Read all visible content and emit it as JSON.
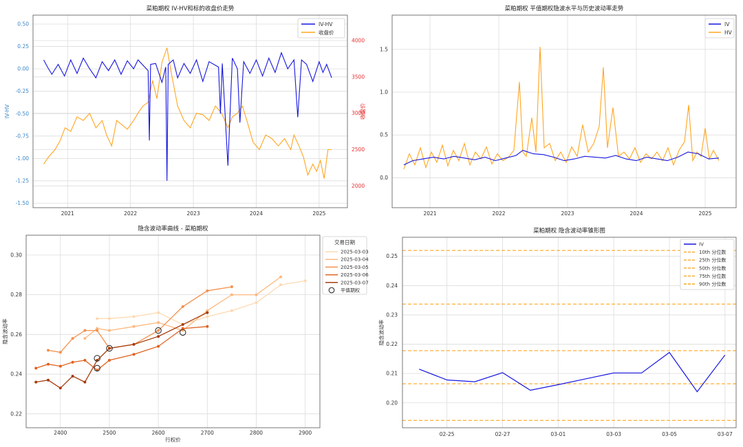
{
  "chart_data": [
    {
      "type": "line",
      "title": "菜粕期权 IV-HV和标的收盘价走势",
      "ylabel": "IV-HV",
      "y2label": "收盘价",
      "ylim": [
        -1.55,
        0.6
      ],
      "y2lim": [
        1700,
        4350
      ],
      "yticks": [
        "0.50",
        "0.25",
        "0.00",
        "-0.25",
        "-0.50",
        "-0.75",
        "-1.00",
        "-1.25",
        "-1.50"
      ],
      "y2ticks": [
        "4000",
        "3500",
        "3000",
        "2500",
        "2000"
      ],
      "xticks": [
        "2021",
        "2022",
        "2023",
        "2024",
        "2025"
      ],
      "xlim": [
        2020.45,
        2025.45
      ],
      "legend": [
        "IV-HV",
        "收盘价"
      ],
      "legend_position": "top-right",
      "colors": {
        "iv_hv": "#1515e0",
        "close": "#ffa51f",
        "y_left_ticks": "#3a86c8",
        "y_right_ticks": "#e83030"
      },
      "grid": true,
      "series": [
        {
          "name": "IV-HV",
          "axis": "left",
          "x": [
            2020.62,
            2020.68,
            2020.75,
            2020.85,
            2020.95,
            2021.05,
            2021.15,
            2021.25,
            2021.35,
            2021.45,
            2021.55,
            2021.65,
            2021.75,
            2021.85,
            2021.95,
            2022.05,
            2022.12,
            2022.28,
            2022.3,
            2022.32,
            2022.4,
            2022.5,
            2022.56,
            2022.58,
            2022.6,
            2022.68,
            2022.75,
            2022.85,
            2022.95,
            2023.05,
            2023.15,
            2023.25,
            2023.4,
            2023.43,
            2023.46,
            2023.55,
            2023.62,
            2023.7,
            2023.74,
            2023.8,
            2023.9,
            2024.0,
            2024.1,
            2024.2,
            2024.3,
            2024.4,
            2024.5,
            2024.6,
            2024.66,
            2024.72,
            2024.8,
            2024.9,
            2025.0,
            2025.06,
            2025.12,
            2025.2
          ],
          "values": [
            0.1,
            0.02,
            -0.06,
            0.05,
            -0.08,
            0.1,
            -0.05,
            0.12,
            0.0,
            -0.1,
            0.08,
            -0.02,
            0.1,
            -0.06,
            0.09,
            0.0,
            0.1,
            -0.02,
            -0.8,
            0.05,
            0.06,
            -0.15,
            0.02,
            -1.25,
            0.05,
            0.1,
            -0.1,
            0.06,
            -0.05,
            0.1,
            -0.14,
            0.08,
            0.02,
            -0.5,
            0.06,
            -1.08,
            0.12,
            0.0,
            -0.6,
            0.08,
            -0.05,
            0.1,
            -0.08,
            0.12,
            -0.04,
            0.18,
            0.0,
            0.1,
            -0.54,
            0.1,
            0.05,
            -0.14,
            0.08,
            -0.04,
            0.05,
            -0.1
          ]
        },
        {
          "name": "收盘价",
          "axis": "right",
          "x": [
            2020.62,
            2020.7,
            2020.8,
            2020.88,
            2020.96,
            2021.05,
            2021.15,
            2021.25,
            2021.35,
            2021.45,
            2021.55,
            2021.62,
            2021.7,
            2021.78,
            2021.85,
            2021.95,
            2022.05,
            2022.12,
            2022.2,
            2022.28,
            2022.35,
            2022.42,
            2022.5,
            2022.58,
            2022.65,
            2022.75,
            2022.85,
            2022.95,
            2023.05,
            2023.15,
            2023.25,
            2023.35,
            2023.45,
            2023.55,
            2023.62,
            2023.7,
            2023.78,
            2023.85,
            2023.95,
            2024.05,
            2024.15,
            2024.25,
            2024.35,
            2024.45,
            2024.55,
            2024.6,
            2024.68,
            2024.75,
            2024.82,
            2024.9,
            2024.96,
            2025.02,
            2025.08,
            2025.14,
            2025.2
          ],
          "values": [
            2300,
            2400,
            2500,
            2620,
            2800,
            2750,
            2950,
            2900,
            3000,
            2800,
            2900,
            2700,
            2550,
            2900,
            2850,
            2780,
            2900,
            3000,
            3100,
            3150,
            3450,
            3200,
            3700,
            3900,
            3550,
            3100,
            2900,
            2800,
            3000,
            2980,
            2900,
            3100,
            3000,
            2800,
            2950,
            3000,
            3100,
            2900,
            2600,
            2500,
            2700,
            2650,
            2550,
            2650,
            2500,
            2700,
            2550,
            2400,
            2150,
            2300,
            2200,
            2350,
            2100,
            2500,
            2500
          ]
        }
      ]
    },
    {
      "type": "line",
      "title": "菜粕期权 平值期权隐波水平与历史波动率走势",
      "ylim": [
        -0.35,
        1.9
      ],
      "yticks": [
        "1.5",
        "1.0",
        "0.5",
        "0.0"
      ],
      "xticks": [
        "2021",
        "2022",
        "2023",
        "2024",
        "2025"
      ],
      "xlim": [
        2020.45,
        2025.45
      ],
      "legend": [
        "IV",
        "HV"
      ],
      "legend_position": "top-right",
      "colors": {
        "iv": "#1515e0",
        "hv": "#ffa51f"
      },
      "grid": true,
      "series": [
        {
          "name": "IV",
          "x": [
            2020.62,
            2020.75,
            2020.9,
            2021.05,
            2021.2,
            2021.35,
            2021.5,
            2021.65,
            2021.8,
            2021.95,
            2022.1,
            2022.25,
            2022.35,
            2022.5,
            2022.65,
            2022.8,
            2022.95,
            2023.1,
            2023.25,
            2023.4,
            2023.55,
            2023.7,
            2023.85,
            2024.0,
            2024.15,
            2024.3,
            2024.45,
            2024.6,
            2024.75,
            2024.9,
            2025.05,
            2025.2
          ],
          "values": [
            0.15,
            0.2,
            0.22,
            0.24,
            0.22,
            0.25,
            0.23,
            0.21,
            0.24,
            0.2,
            0.23,
            0.26,
            0.32,
            0.28,
            0.27,
            0.24,
            0.2,
            0.22,
            0.25,
            0.24,
            0.23,
            0.26,
            0.22,
            0.2,
            0.24,
            0.22,
            0.2,
            0.24,
            0.3,
            0.28,
            0.22,
            0.23
          ]
        },
        {
          "name": "HV",
          "x": [
            2020.62,
            2020.7,
            2020.78,
            2020.86,
            2020.94,
            2021.02,
            2021.1,
            2021.18,
            2021.26,
            2021.34,
            2021.42,
            2021.5,
            2021.58,
            2021.66,
            2021.74,
            2021.82,
            2021.9,
            2021.98,
            2022.06,
            2022.14,
            2022.22,
            2022.3,
            2022.35,
            2022.4,
            2022.48,
            2022.54,
            2022.6,
            2022.66,
            2022.74,
            2022.82,
            2022.9,
            2022.98,
            2023.06,
            2023.14,
            2023.22,
            2023.3,
            2023.38,
            2023.46,
            2023.52,
            2023.58,
            2023.66,
            2023.74,
            2023.82,
            2023.9,
            2023.98,
            2024.06,
            2024.14,
            2024.22,
            2024.3,
            2024.38,
            2024.46,
            2024.54,
            2024.62,
            2024.7,
            2024.76,
            2024.82,
            2024.88,
            2024.94,
            2025.0,
            2025.06,
            2025.12,
            2025.2
          ],
          "values": [
            0.1,
            0.28,
            0.15,
            0.35,
            0.12,
            0.3,
            0.18,
            0.38,
            0.14,
            0.32,
            0.2,
            0.4,
            0.15,
            0.3,
            0.22,
            0.36,
            0.16,
            0.28,
            0.2,
            0.24,
            0.32,
            1.12,
            0.3,
            0.25,
            0.7,
            0.3,
            1.53,
            0.35,
            0.4,
            0.2,
            0.3,
            0.18,
            0.36,
            0.25,
            0.62,
            0.3,
            0.4,
            0.6,
            1.29,
            0.35,
            0.82,
            0.25,
            0.3,
            0.22,
            0.35,
            0.18,
            0.28,
            0.22,
            0.3,
            0.2,
            0.35,
            0.15,
            0.32,
            0.42,
            0.85,
            0.2,
            0.3,
            0.25,
            0.58,
            0.22,
            0.32,
            0.2
          ]
        }
      ]
    },
    {
      "type": "line",
      "title": "隐含波动率曲线 - 菜粕期权",
      "xlabel": "行权价",
      "ylabel": "隐含波动率",
      "xlim": [
        2330,
        2930
      ],
      "ylim": [
        0.213,
        0.31
      ],
      "xticks": [
        "2400",
        "2500",
        "2600",
        "2700",
        "2800",
        "2900"
      ],
      "yticks": [
        "0.30",
        "0.28",
        "0.26",
        "0.24",
        "0.22"
      ],
      "legend_title": "交易日期",
      "legend": [
        "2025-03-03",
        "2025-03-04",
        "2025-03-05",
        "2025-03-06",
        "2025-03-07",
        "平值期权"
      ],
      "legend_position": "outside-right",
      "grid": true,
      "series": [
        {
          "name": "2025-03-03",
          "color": "#fdd9b2",
          "x": [
            2475,
            2500,
            2550,
            2600,
            2650,
            2700,
            2750,
            2800,
            2850,
            2900
          ],
          "values": [
            0.268,
            0.268,
            0.269,
            0.271,
            0.265,
            0.269,
            0.272,
            0.276,
            0.285,
            0.287
          ]
        },
        {
          "name": "2025-03-04",
          "color": "#fdb87e",
          "x": [
            2450,
            2475,
            2500,
            2550,
            2600,
            2650,
            2700,
            2750,
            2800,
            2850
          ],
          "values": [
            0.258,
            0.263,
            0.262,
            0.264,
            0.266,
            0.262,
            0.272,
            0.28,
            0.28,
            0.289
          ]
        },
        {
          "name": "2025-03-05",
          "color": "#f4904c",
          "x": [
            2375,
            2400,
            2425,
            2450,
            2475,
            2500,
            2550,
            2600,
            2650,
            2700,
            2750
          ],
          "values": [
            0.252,
            0.251,
            0.258,
            0.262,
            0.262,
            0.253,
            0.255,
            0.262,
            0.274,
            0.282,
            0.284
          ]
        },
        {
          "name": "2025-03-06",
          "color": "#e0621f",
          "x": [
            2350,
            2375,
            2400,
            2425,
            2450,
            2475,
            2500,
            2550,
            2600,
            2650,
            2700
          ],
          "values": [
            0.243,
            0.245,
            0.244,
            0.246,
            0.247,
            0.242,
            0.247,
            0.25,
            0.254,
            0.263,
            0.264
          ]
        },
        {
          "name": "2025-03-07",
          "color": "#a63c0c",
          "x": [
            2350,
            2375,
            2400,
            2425,
            2450,
            2475,
            2500,
            2550,
            2600,
            2650,
            2700
          ],
          "values": [
            0.236,
            0.237,
            0.233,
            0.239,
            0.236,
            0.247,
            0.253,
            0.255,
            0.259,
            0.265,
            0.271
          ]
        }
      ],
      "atm_points": {
        "name": "平值期权",
        "x": [
          2475,
          2475,
          2500,
          2600,
          2650
        ],
        "values": [
          0.248,
          0.243,
          0.253,
          0.262,
          0.261
        ]
      }
    },
    {
      "type": "line",
      "title": "菜粕期权 隐含波动率锥形图",
      "ylabel": "隐含波动率",
      "ylim": [
        0.1915,
        0.2565
      ],
      "yticks": [
        "0.25",
        "0.24",
        "0.23",
        "0.22",
        "0.21",
        "0.20"
      ],
      "xticks": [
        "02-25",
        "02-27",
        "03-01",
        "03-03",
        "03-05",
        "03-07"
      ],
      "legend": [
        "IV",
        "10th 分位数",
        "25th 分位数",
        "50th 分位数",
        "75th 分位数",
        "90th 分位数"
      ],
      "legend_position": "top-right",
      "colors": {
        "iv": "#1515e0",
        "quantile": "#ffa51f"
      },
      "grid": true,
      "series": [
        {
          "name": "IV",
          "x": [
            "02-24",
            "02-25",
            "02-26",
            "02-27",
            "02-28",
            "03-01",
            "03-02",
            "03-03",
            "03-04",
            "03-05",
            "03-06",
            "03-07"
          ],
          "values": [
            0.2115,
            0.2078,
            0.2072,
            0.2103,
            0.2043,
            0.2062,
            0.2082,
            0.2102,
            0.2102,
            0.2172,
            0.2038,
            0.2163
          ]
        }
      ],
      "quantiles": [
        {
          "name": "10th 分位数",
          "value": 0.194
        },
        {
          "name": "25th 分位数",
          "value": 0.2065
        },
        {
          "name": "50th 分位数",
          "value": 0.2178
        },
        {
          "name": "75th 分位数",
          "value": 0.2337
        },
        {
          "name": "90th 分位数",
          "value": 0.252
        }
      ]
    }
  ]
}
